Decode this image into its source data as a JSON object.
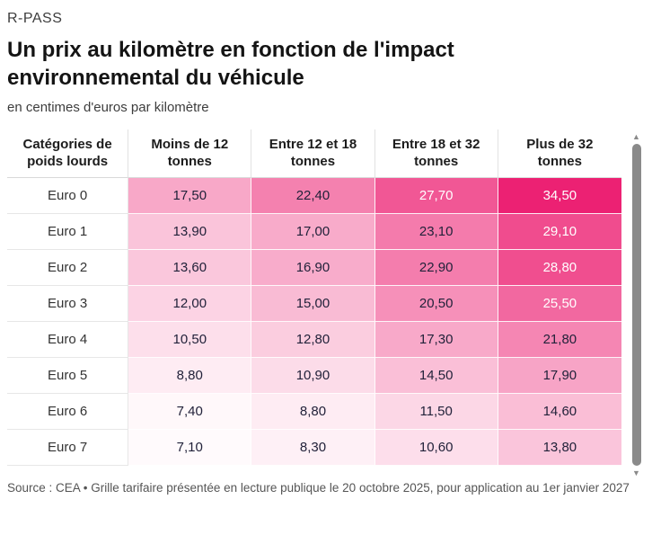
{
  "header": {
    "kicker": "R-PASS",
    "title": "Un prix au kilomètre en fonction de l'impact environnemental du véhicule",
    "subtitle": "en centimes d'euros par kilomètre"
  },
  "table": {
    "row_header": "Catégories de poids lourds",
    "columns": [
      "Moins de 12 tonnes",
      "Entre 12 et 18 tonnes",
      "Entre 18 et 32 tonnes",
      "Plus de 32 tonnes"
    ],
    "rows": [
      {
        "label": "Euro 0",
        "values": [
          "17,50",
          "22,40",
          "27,70",
          "34,50"
        ],
        "bg": [
          "#F8A8C8",
          "#F481AF",
          "#F15795",
          "#EC2173"
        ],
        "fg": [
          "#22223A",
          "#22223A",
          "#FFFFFF",
          "#FFFFFF"
        ]
      },
      {
        "label": "Euro 1",
        "values": [
          "13,90",
          "17,00",
          "23,10",
          "29,10"
        ],
        "bg": [
          "#FAC4DA",
          "#F8ABCA",
          "#F47BAC",
          "#F04C8E"
        ],
        "fg": [
          "#22223A",
          "#22223A",
          "#22223A",
          "#FFFFFF"
        ]
      },
      {
        "label": "Euro 2",
        "values": [
          "13,60",
          "16,90",
          "22,90",
          "28,80"
        ],
        "bg": [
          "#FAC7DC",
          "#F8ACCB",
          "#F47DAD",
          "#F04E8F"
        ],
        "fg": [
          "#22223A",
          "#22223A",
          "#22223A",
          "#FFFFFF"
        ]
      },
      {
        "label": "Euro 3",
        "values": [
          "12,00",
          "15,00",
          "20,50",
          "25,50"
        ],
        "bg": [
          "#FCD3E4",
          "#F9BBD4",
          "#F690B9",
          "#F268A0"
        ],
        "fg": [
          "#22223A",
          "#22223A",
          "#22223A",
          "#FFFFFF"
        ]
      },
      {
        "label": "Euro 4",
        "values": [
          "10,50",
          "12,80",
          "17,30",
          "21,80"
        ],
        "bg": [
          "#FDDFEB",
          "#FBCDDF",
          "#F8A9C9",
          "#F586B3"
        ],
        "fg": [
          "#22223A",
          "#22223A",
          "#22223A",
          "#22223A"
        ]
      },
      {
        "label": "Euro 5",
        "values": [
          "8,80",
          "10,90",
          "14,50",
          "17,90"
        ],
        "bg": [
          "#FEECF3",
          "#FCDCE9",
          "#FABFD7",
          "#F7A4C6"
        ],
        "fg": [
          "#22223A",
          "#22223A",
          "#22223A",
          "#22223A"
        ]
      },
      {
        "label": "Euro 6",
        "values": [
          "7,40",
          "8,80",
          "11,50",
          "14,60"
        ],
        "bg": [
          "#FFF8FA",
          "#FEECF3",
          "#FCD7E6",
          "#FABED6"
        ],
        "fg": [
          "#22223A",
          "#22223A",
          "#22223A",
          "#22223A"
        ]
      },
      {
        "label": "Euro 7",
        "values": [
          "7,10",
          "8,30",
          "10,60",
          "13,80"
        ],
        "bg": [
          "#FFFAFC",
          "#FEF0F6",
          "#FDDEEB",
          "#FAC5DB"
        ],
        "fg": [
          "#22223A",
          "#22223A",
          "#22223A",
          "#22223A"
        ]
      }
    ]
  },
  "scrollbar": {
    "up_icon": "▲",
    "down_icon": "▼",
    "thumb_color": "#8A8A8A"
  },
  "footer": {
    "source": "Source : CEA • Grille tarifaire présentée en lecture publique le 20 octobre 2025, pour application au 1er janvier 2027"
  },
  "colors": {
    "scale_min_color": "#FFFAFC",
    "scale_max_color": "#EC2173",
    "text_dark": "#22223A",
    "text_light": "#FFFFFF"
  },
  "chart_data": {
    "type": "heatmap",
    "title": "Un prix au kilomètre en fonction de l'impact environnemental du véhicule",
    "kicker": "R-PASS",
    "units": "en centimes d'euros par kilomètre",
    "row_label_header": "Catégories de poids lourds",
    "columns": [
      "Moins de 12 tonnes",
      "Entre 12 et 18 tonnes",
      "Entre 18 et 32 tonnes",
      "Plus de 32 tonnes"
    ],
    "rows": [
      "Euro 0",
      "Euro 1",
      "Euro 2",
      "Euro 3",
      "Euro 4",
      "Euro 5",
      "Euro 6",
      "Euro 7"
    ],
    "values": [
      [
        17.5,
        22.4,
        27.7,
        34.5
      ],
      [
        13.9,
        17.0,
        23.1,
        29.1
      ],
      [
        13.6,
        16.9,
        22.9,
        28.8
      ],
      [
        12.0,
        15.0,
        20.5,
        25.5
      ],
      [
        10.5,
        12.8,
        17.3,
        21.8
      ],
      [
        8.8,
        10.9,
        14.5,
        17.9
      ],
      [
        7.4,
        8.8,
        11.5,
        14.6
      ],
      [
        7.1,
        8.3,
        10.6,
        13.8
      ]
    ],
    "color_scale": {
      "min_value": 7.1,
      "max_value": 34.5,
      "min_color": "#FFFAFC",
      "max_color": "#EC2173"
    },
    "source": "Source : CEA • Grille tarifaire présentée en lecture publique le 20 octobre 2025, pour application au 1er janvier 2027"
  }
}
